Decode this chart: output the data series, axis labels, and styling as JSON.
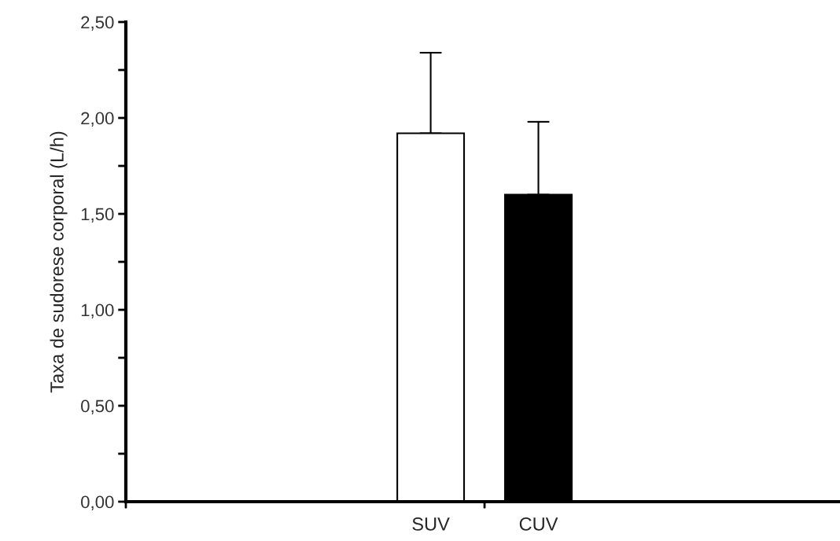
{
  "chart_data": {
    "type": "bar",
    "ylabel": "Taxa de sudorese corporal (L/h)",
    "categories": [
      "SUV",
      "CUV"
    ],
    "values": [
      1.92,
      1.6
    ],
    "colors": [
      "#ffffff",
      "#000000"
    ],
    "errors": [
      [
        1.92,
        2.34
      ],
      [
        1.6,
        1.98
      ]
    ],
    "ylim": [
      0,
      2.5
    ],
    "yticks": [
      {
        "value": 0,
        "label": "0,00"
      },
      {
        "value": 0.25,
        "label": null
      },
      {
        "value": 0.5,
        "label": "0,50"
      },
      {
        "value": 0.75,
        "label": null
      },
      {
        "value": 1.0,
        "label": "1,00"
      },
      {
        "value": 1.25,
        "label": null
      },
      {
        "value": 1.5,
        "label": "1,50"
      },
      {
        "value": 1.75,
        "label": null
      },
      {
        "value": 2.0,
        "label": "2,00"
      },
      {
        "value": 2.25,
        "label": null
      },
      {
        "value": 2.5,
        "label": "2,50"
      }
    ],
    "grid": false
  }
}
